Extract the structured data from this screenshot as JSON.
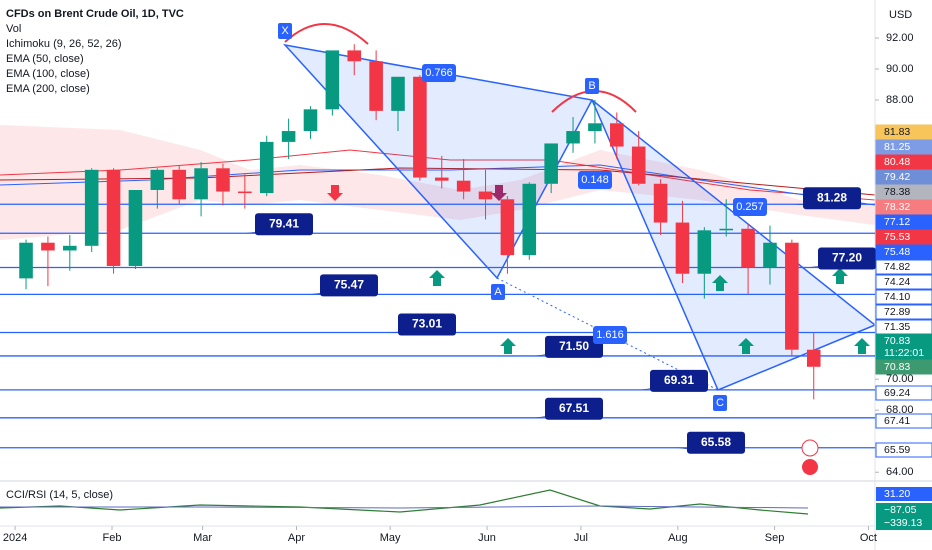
{
  "chart_data": {
    "type": "candlestick",
    "title": "CFDs on Brent Crude Oil, 1D, TVC",
    "legend": [
      "Vol",
      "Ichimoku (9, 26, 52, 26)",
      "EMA (50, close)",
      "EMA (100, close)",
      "EMA (200, close)"
    ],
    "currency": "USD",
    "up_color": "#089981",
    "down_color": "#f23645",
    "ylim": [
      63.5,
      94.45
    ],
    "yticks": [
      {
        "value": 92,
        "label": "92.00"
      },
      {
        "value": 90,
        "label": "90.00"
      },
      {
        "value": 88,
        "label": "88.00"
      },
      {
        "value": 70,
        "label": "70.00"
      },
      {
        "value": 68,
        "label": "68.00"
      },
      {
        "value": 64,
        "label": "64.00"
      }
    ],
    "xlim": [
      -0.69,
      39.3
    ],
    "xticks": [
      {
        "value": 0,
        "label": "2024"
      },
      {
        "value": 4.43,
        "label": "Feb"
      },
      {
        "value": 8.57,
        "label": "Mar"
      },
      {
        "value": 12.86,
        "label": "Apr"
      },
      {
        "value": 17.14,
        "label": "May"
      },
      {
        "value": 21.57,
        "label": "Jun"
      },
      {
        "value": 25.86,
        "label": "Jul"
      },
      {
        "value": 30.29,
        "label": "Aug"
      },
      {
        "value": 34.71,
        "label": "Sep"
      },
      {
        "value": 39,
        "label": "Oct"
      }
    ],
    "x": [
      0.5,
      1.5,
      2.5,
      3.5,
      4.5,
      5.5,
      6.5,
      7.5,
      8.5,
      9.5,
      10.5,
      11.5,
      12.5,
      13.5,
      14.5,
      15.5,
      16.5,
      17.5,
      18.5,
      19.5,
      20.5,
      21.5,
      22.5,
      23.5,
      24.5,
      25.5,
      26.5,
      27.5,
      28.5,
      29.5,
      30.5,
      31.5,
      32.5,
      33.5,
      34.5,
      35.5,
      36.5
    ],
    "open": [
      76.5,
      78.8,
      78.3,
      78.6,
      83.5,
      77.3,
      82.2,
      83.5,
      81.6,
      83.6,
      82.1,
      82.0,
      85.3,
      86.0,
      87.4,
      91.2,
      90.5,
      87.3,
      89.5,
      83.0,
      82.8,
      82.1,
      81.6,
      78.0,
      82.6,
      85.2,
      86.0,
      86.5,
      85.0,
      82.6,
      80.1,
      76.8,
      79.6,
      79.7,
      77.2,
      78.8,
      71.9
    ],
    "high": [
      79.0,
      79.2,
      79.3,
      83.6,
      83.6,
      82.2,
      83.6,
      83.8,
      84.0,
      83.9,
      83.2,
      85.7,
      86.8,
      87.6,
      91.2,
      91.6,
      91.2,
      89.5,
      89.6,
      84.4,
      84.2,
      83.5,
      81.8,
      82.7,
      85.2,
      86.9,
      88.0,
      87.2,
      86.0,
      82.9,
      81.5,
      79.8,
      81.6,
      80.0,
      79.9,
      79.0,
      73.0
    ],
    "low": [
      75.8,
      76.0,
      77.0,
      78.2,
      76.8,
      77.1,
      81.0,
      81.3,
      80.5,
      81.2,
      81.0,
      81.8,
      84.2,
      85.5,
      87.0,
      89.6,
      86.7,
      86.0,
      82.8,
      82.3,
      81.6,
      80.3,
      76.8,
      77.7,
      82.0,
      84.6,
      85.2,
      84.2,
      82.5,
      79.3,
      76.2,
      75.2,
      79.2,
      75.5,
      76.1,
      71.5,
      68.7
    ],
    "close": [
      78.8,
      78.3,
      78.6,
      83.5,
      77.3,
      82.2,
      83.5,
      81.6,
      83.6,
      82.1,
      82.0,
      85.3,
      86.0,
      87.4,
      91.2,
      90.5,
      87.3,
      89.5,
      83.0,
      82.8,
      82.1,
      81.6,
      78.0,
      82.6,
      85.2,
      86.0,
      86.5,
      85.0,
      82.6,
      80.1,
      76.8,
      79.6,
      79.7,
      77.2,
      78.8,
      71.9,
      70.8
    ],
    "levels": [
      79.41,
      75.47,
      73.01,
      71.5,
      69.31,
      67.51,
      65.58,
      81.28,
      77.2
    ],
    "level_labels": [
      "79.41",
      "75.47",
      "73.01",
      "71.50",
      "69.31",
      "67.51",
      "65.58",
      "81.28",
      "77.20"
    ],
    "pattern_points": [
      "X",
      "A",
      "B",
      "C"
    ],
    "ratios": [
      "0.766",
      "0.148",
      "0.257",
      "1.616"
    ],
    "axis_tags": [
      {
        "label": "81.83",
        "color": "#f7c55a",
        "text": "#131722"
      },
      {
        "label": "81.25",
        "color": "#7e9ce6",
        "text": "#ffffff"
      },
      {
        "label": "80.48",
        "color": "#f23645",
        "text": "#ffffff"
      },
      {
        "label": "79.42",
        "color": "#6e8fd8",
        "text": "#ffffff"
      },
      {
        "label": "78.38",
        "color": "#b2b5be",
        "text": "#131722"
      },
      {
        "label": "78.32",
        "color": "#f77c80",
        "text": "#ffffff"
      },
      {
        "label": "77.12",
        "color": "#2962ff",
        "text": "#ffffff"
      },
      {
        "label": "75.53",
        "color": "#f23645",
        "text": "#ffffff"
      },
      {
        "label": "75.48",
        "color": "#2962ff",
        "text": "#ffffff"
      },
      {
        "label": "74.82",
        "color": "#ffffff",
        "text": "#131722"
      },
      {
        "label": "74.24",
        "color": "#ffffff",
        "text": "#131722"
      },
      {
        "label": "74.10",
        "color": "#ffffff",
        "text": "#131722"
      },
      {
        "label": "72.89",
        "color": "#ffffff",
        "text": "#131722"
      },
      {
        "label": "71.35",
        "color": "#ffffff",
        "text": "#131722"
      },
      {
        "label": "70.83",
        "color": "#089981",
        "text": "#ffffff"
      },
      {
        "label": "11:22:01",
        "color": "#089981",
        "text": "#ffffff"
      },
      {
        "label": "70.83",
        "color": "#3d9970",
        "text": "#ffffff"
      },
      {
        "label": "69.24",
        "color": "#ffffff",
        "text": "#131722"
      },
      {
        "label": "67.41",
        "color": "#ffffff",
        "text": "#131722"
      },
      {
        "label": "65.59",
        "color": "#ffffff",
        "text": "#131722"
      }
    ],
    "sub_pane": {
      "title": "CCI/RSI (14, 5, close)",
      "tags": [
        {
          "label": "31.20",
          "color": "#2962ff"
        },
        {
          "label": "−87.05",
          "color": "#089981"
        },
        {
          "label": "−339.13",
          "color": "#089981"
        }
      ]
    }
  }
}
